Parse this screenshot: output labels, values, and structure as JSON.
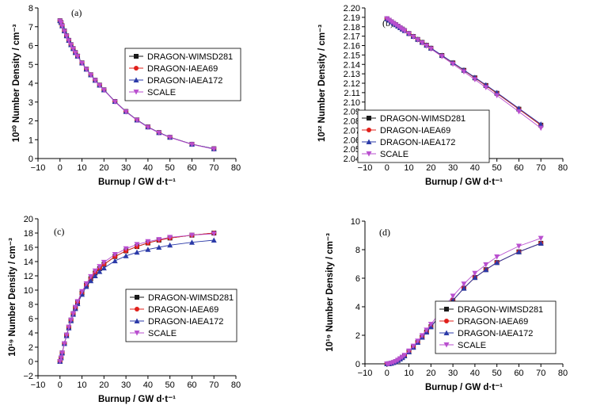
{
  "chart_data": [
    {
      "type": "line",
      "panel": "(a)",
      "ylabel": "10²⁰ Number Density / cm⁻³",
      "xlabel": "Burnup / GW d·t⁻¹",
      "xlim": [
        -10,
        80
      ],
      "xticks": [
        -10,
        0,
        10,
        20,
        30,
        40,
        50,
        60,
        70,
        80
      ],
      "ylim": [
        0,
        8
      ],
      "yticks": [
        0,
        1,
        2,
        3,
        4,
        5,
        6,
        7,
        8
      ],
      "legend_pos": "upper-right",
      "x": [
        0,
        0.5,
        1,
        2,
        3,
        4,
        5,
        6,
        7,
        8,
        10,
        12,
        14,
        16,
        18,
        20,
        25,
        30,
        35,
        40,
        45,
        50,
        60,
        70
      ],
      "series": [
        {
          "name": "DRAGON-WIMSD281",
          "marker": "square",
          "color": "#1a1a1a",
          "values": [
            7.32,
            7.22,
            7.05,
            6.78,
            6.52,
            6.28,
            6.05,
            5.84,
            5.63,
            5.44,
            5.08,
            4.75,
            4.45,
            4.16,
            3.9,
            3.65,
            3.03,
            2.5,
            2.05,
            1.68,
            1.38,
            1.13,
            0.76,
            0.52
          ]
        },
        {
          "name": "DRAGON-IAEA69",
          "marker": "circle",
          "color": "#e0201b",
          "values": [
            7.32,
            7.22,
            7.05,
            6.78,
            6.52,
            6.28,
            6.05,
            5.84,
            5.63,
            5.44,
            5.08,
            4.75,
            4.45,
            4.16,
            3.9,
            3.65,
            3.03,
            2.5,
            2.05,
            1.68,
            1.38,
            1.13,
            0.76,
            0.52
          ]
        },
        {
          "name": "DRAGON-IAEA172",
          "marker": "triangle-up",
          "color": "#2b3aa8",
          "values": [
            7.32,
            7.22,
            7.05,
            6.78,
            6.52,
            6.28,
            6.05,
            5.84,
            5.63,
            5.44,
            5.08,
            4.75,
            4.45,
            4.16,
            3.9,
            3.65,
            3.03,
            2.5,
            2.05,
            1.68,
            1.38,
            1.13,
            0.76,
            0.52
          ]
        },
        {
          "name": "SCALE",
          "marker": "triangle-down",
          "color": "#b94fcf",
          "values": [
            7.3,
            7.2,
            7.03,
            6.76,
            6.5,
            6.26,
            6.03,
            5.82,
            5.61,
            5.42,
            5.06,
            4.73,
            4.43,
            4.14,
            3.88,
            3.63,
            3.01,
            2.48,
            2.03,
            1.66,
            1.36,
            1.12,
            0.75,
            0.5
          ]
        }
      ]
    },
    {
      "type": "line",
      "panel": "(b)",
      "ylabel": "10²² Number Density / cm⁻³",
      "xlabel": "Burnup / GW d·t⁻¹",
      "xlim": [
        -10,
        80
      ],
      "xticks": [
        -10,
        0,
        10,
        20,
        30,
        40,
        50,
        60,
        70,
        80
      ],
      "ylim": [
        2.04,
        2.2
      ],
      "yticks": [
        2.04,
        2.05,
        2.06,
        2.07,
        2.08,
        2.09,
        2.1,
        2.11,
        2.12,
        2.13,
        2.14,
        2.15,
        2.16,
        2.17,
        2.18,
        2.19,
        2.2
      ],
      "legend_pos": "lower-left",
      "x": [
        0,
        1,
        2,
        3,
        4,
        5,
        6,
        7,
        8,
        10,
        12,
        14,
        16,
        18,
        20,
        25,
        30,
        35,
        40,
        45,
        50,
        60,
        70
      ],
      "series": [
        {
          "name": "DRAGON-WIMSD281",
          "marker": "square",
          "color": "#1a1a1a",
          "values": [
            2.1885,
            2.1869,
            2.1853,
            2.1837,
            2.1822,
            2.1806,
            2.179,
            2.1775,
            2.1759,
            2.1728,
            2.1697,
            2.1665,
            2.1634,
            2.1603,
            2.1572,
            2.1494,
            2.1416,
            2.1337,
            2.1257,
            2.1176,
            2.1093,
            2.0925,
            2.0755
          ]
        },
        {
          "name": "DRAGON-IAEA69",
          "marker": "circle",
          "color": "#e0201b",
          "values": [
            2.1885,
            2.1869,
            2.1853,
            2.1837,
            2.1822,
            2.1806,
            2.179,
            2.1775,
            2.1759,
            2.1728,
            2.1697,
            2.1665,
            2.1634,
            2.1603,
            2.1572,
            2.1494,
            2.1416,
            2.1337,
            2.1257,
            2.1176,
            2.1093,
            2.0925,
            2.0755
          ]
        },
        {
          "name": "DRAGON-IAEA172",
          "marker": "triangle-up",
          "color": "#2b3aa8",
          "values": [
            2.1885,
            2.1869,
            2.1853,
            2.1838,
            2.1822,
            2.1807,
            2.1791,
            2.1776,
            2.176,
            2.1729,
            2.1698,
            2.1667,
            2.1636,
            2.1605,
            2.1574,
            2.1497,
            2.1419,
            2.1341,
            2.1262,
            2.1182,
            2.11,
            2.0933,
            2.0765
          ]
        },
        {
          "name": "SCALE",
          "marker": "triangle-down",
          "color": "#b94fcf",
          "values": [
            2.1885,
            2.1868,
            2.1852,
            2.1836,
            2.182,
            2.1804,
            2.1788,
            2.1772,
            2.1756,
            2.1724,
            2.1692,
            2.166,
            2.1628,
            2.1596,
            2.1564,
            2.1484,
            2.1403,
            2.1322,
            2.1239,
            2.1155,
            2.107,
            2.0898,
            2.0723
          ]
        }
      ]
    },
    {
      "type": "line",
      "panel": "(c)",
      "ylabel": "10¹⁹ Number Density / cm⁻³",
      "xlabel": "Burnup / GW d·t⁻¹",
      "xlim": [
        -10,
        80
      ],
      "xticks": [
        -10,
        0,
        10,
        20,
        30,
        40,
        50,
        60,
        70,
        80
      ],
      "ylim": [
        -2,
        20
      ],
      "yticks": [
        -2,
        0,
        2,
        4,
        6,
        8,
        10,
        12,
        14,
        16,
        18,
        20
      ],
      "legend_pos": "right",
      "x": [
        0,
        0.5,
        1,
        2,
        3,
        4,
        5,
        6,
        7,
        8,
        10,
        12,
        14,
        16,
        18,
        20,
        25,
        30,
        35,
        40,
        45,
        50,
        60,
        70
      ],
      "series": [
        {
          "name": "DRAGON-WIMSD281",
          "marker": "square",
          "color": "#1a1a1a",
          "values": [
            0,
            0.5,
            1.2,
            2.5,
            3.7,
            4.8,
            5.8,
            6.7,
            7.5,
            8.3,
            9.6,
            10.7,
            11.6,
            12.4,
            13.0,
            13.6,
            14.7,
            15.5,
            16.1,
            16.6,
            17.0,
            17.3,
            17.7,
            18.0
          ]
        },
        {
          "name": "DRAGON-IAEA69",
          "marker": "circle",
          "color": "#e0201b",
          "values": [
            0,
            0.5,
            1.2,
            2.5,
            3.7,
            4.8,
            5.8,
            6.7,
            7.5,
            8.3,
            9.6,
            10.7,
            11.6,
            12.4,
            13.0,
            13.6,
            14.7,
            15.5,
            16.1,
            16.6,
            17.0,
            17.3,
            17.7,
            18.0
          ]
        },
        {
          "name": "DRAGON-IAEA172",
          "marker": "triangle-up",
          "color": "#2b3aa8",
          "values": [
            0,
            0.5,
            1.2,
            2.5,
            3.6,
            4.7,
            5.7,
            6.6,
            7.4,
            8.1,
            9.4,
            10.5,
            11.3,
            12.0,
            12.6,
            13.1,
            14.1,
            14.8,
            15.3,
            15.7,
            16.0,
            16.3,
            16.7,
            17.0
          ]
        },
        {
          "name": "SCALE",
          "marker": "triangle-down",
          "color": "#b94fcf",
          "values": [
            0,
            0.5,
            1.2,
            2.5,
            3.7,
            4.8,
            5.8,
            6.7,
            7.6,
            8.4,
            9.8,
            10.9,
            11.9,
            12.7,
            13.3,
            13.9,
            15.0,
            15.8,
            16.4,
            16.8,
            17.1,
            17.4,
            17.7,
            17.9
          ]
        }
      ]
    },
    {
      "type": "line",
      "panel": "(d)",
      "ylabel": "10¹⁹ Number Density / cm⁻³",
      "xlabel": "Burnup / GW d·t⁻¹",
      "xlim": [
        -10,
        80
      ],
      "xticks": [
        -10,
        0,
        10,
        20,
        30,
        40,
        50,
        60,
        70,
        80
      ],
      "ylim": [
        0,
        10
      ],
      "yticks": [
        0,
        2,
        4,
        6,
        8,
        10
      ],
      "legend_pos": "lower-right",
      "x": [
        0,
        0.5,
        1,
        2,
        3,
        4,
        5,
        6,
        7,
        8,
        10,
        12,
        14,
        16,
        18,
        20,
        25,
        30,
        35,
        40,
        45,
        50,
        60,
        70
      ],
      "series": [
        {
          "name": "DRAGON-WIMSD281",
          "marker": "square",
          "color": "#1a1a1a",
          "values": [
            0,
            0.0,
            0.01,
            0.04,
            0.09,
            0.16,
            0.24,
            0.33,
            0.44,
            0.56,
            0.84,
            1.16,
            1.5,
            1.86,
            2.23,
            2.6,
            3.55,
            4.45,
            5.3,
            6.05,
            6.6,
            7.1,
            7.85,
            8.45
          ]
        },
        {
          "name": "DRAGON-IAEA69",
          "marker": "circle",
          "color": "#e0201b",
          "values": [
            0,
            0.0,
            0.01,
            0.04,
            0.09,
            0.16,
            0.24,
            0.33,
            0.44,
            0.56,
            0.84,
            1.16,
            1.5,
            1.86,
            2.23,
            2.6,
            3.55,
            4.45,
            5.3,
            6.05,
            6.6,
            7.1,
            7.85,
            8.45
          ]
        },
        {
          "name": "DRAGON-IAEA172",
          "marker": "triangle-up",
          "color": "#2b3aa8",
          "values": [
            0,
            0.0,
            0.01,
            0.04,
            0.09,
            0.16,
            0.24,
            0.33,
            0.44,
            0.56,
            0.84,
            1.16,
            1.5,
            1.86,
            2.23,
            2.6,
            3.55,
            4.45,
            5.3,
            6.05,
            6.6,
            7.1,
            7.85,
            8.45
          ]
        },
        {
          "name": "SCALE",
          "marker": "triangle-down",
          "color": "#b94fcf",
          "values": [
            0,
            0.0,
            0.01,
            0.05,
            0.1,
            0.17,
            0.26,
            0.36,
            0.47,
            0.6,
            0.9,
            1.24,
            1.6,
            1.98,
            2.37,
            2.77,
            3.78,
            4.75,
            5.6,
            6.35,
            6.95,
            7.5,
            8.25,
            8.8
          ]
        }
      ]
    }
  ]
}
